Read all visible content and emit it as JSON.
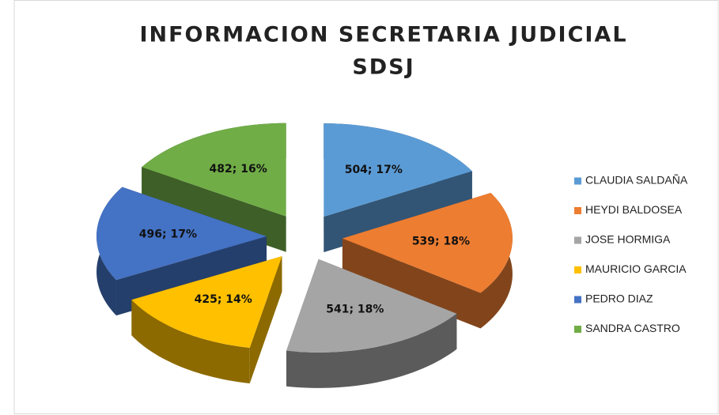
{
  "chart_data": {
    "type": "pie3d",
    "title": [
      "INFORMACION  SECRETARIA JUDICIAL",
      "SDSJ"
    ],
    "categories": [
      "CLAUDIA SALDAÑA",
      "HEYDI BALDOSEA",
      "JOSE HORMIGA",
      "MAURICIO GARCIA",
      "PEDRO DIAZ",
      "SANDRA CASTRO"
    ],
    "values": [
      504,
      539,
      541,
      425,
      496,
      482
    ],
    "value_labels": [
      "504; 17%",
      "539; 18%",
      "541; 18%",
      "425; 14%",
      "496; 17%",
      "482; 16%"
    ],
    "colors": [
      "#5b9bd5",
      "#ed7d31",
      "#a5a5a5",
      "#ffc000",
      "#4472c4",
      "#70ad47"
    ],
    "legend": "right"
  }
}
